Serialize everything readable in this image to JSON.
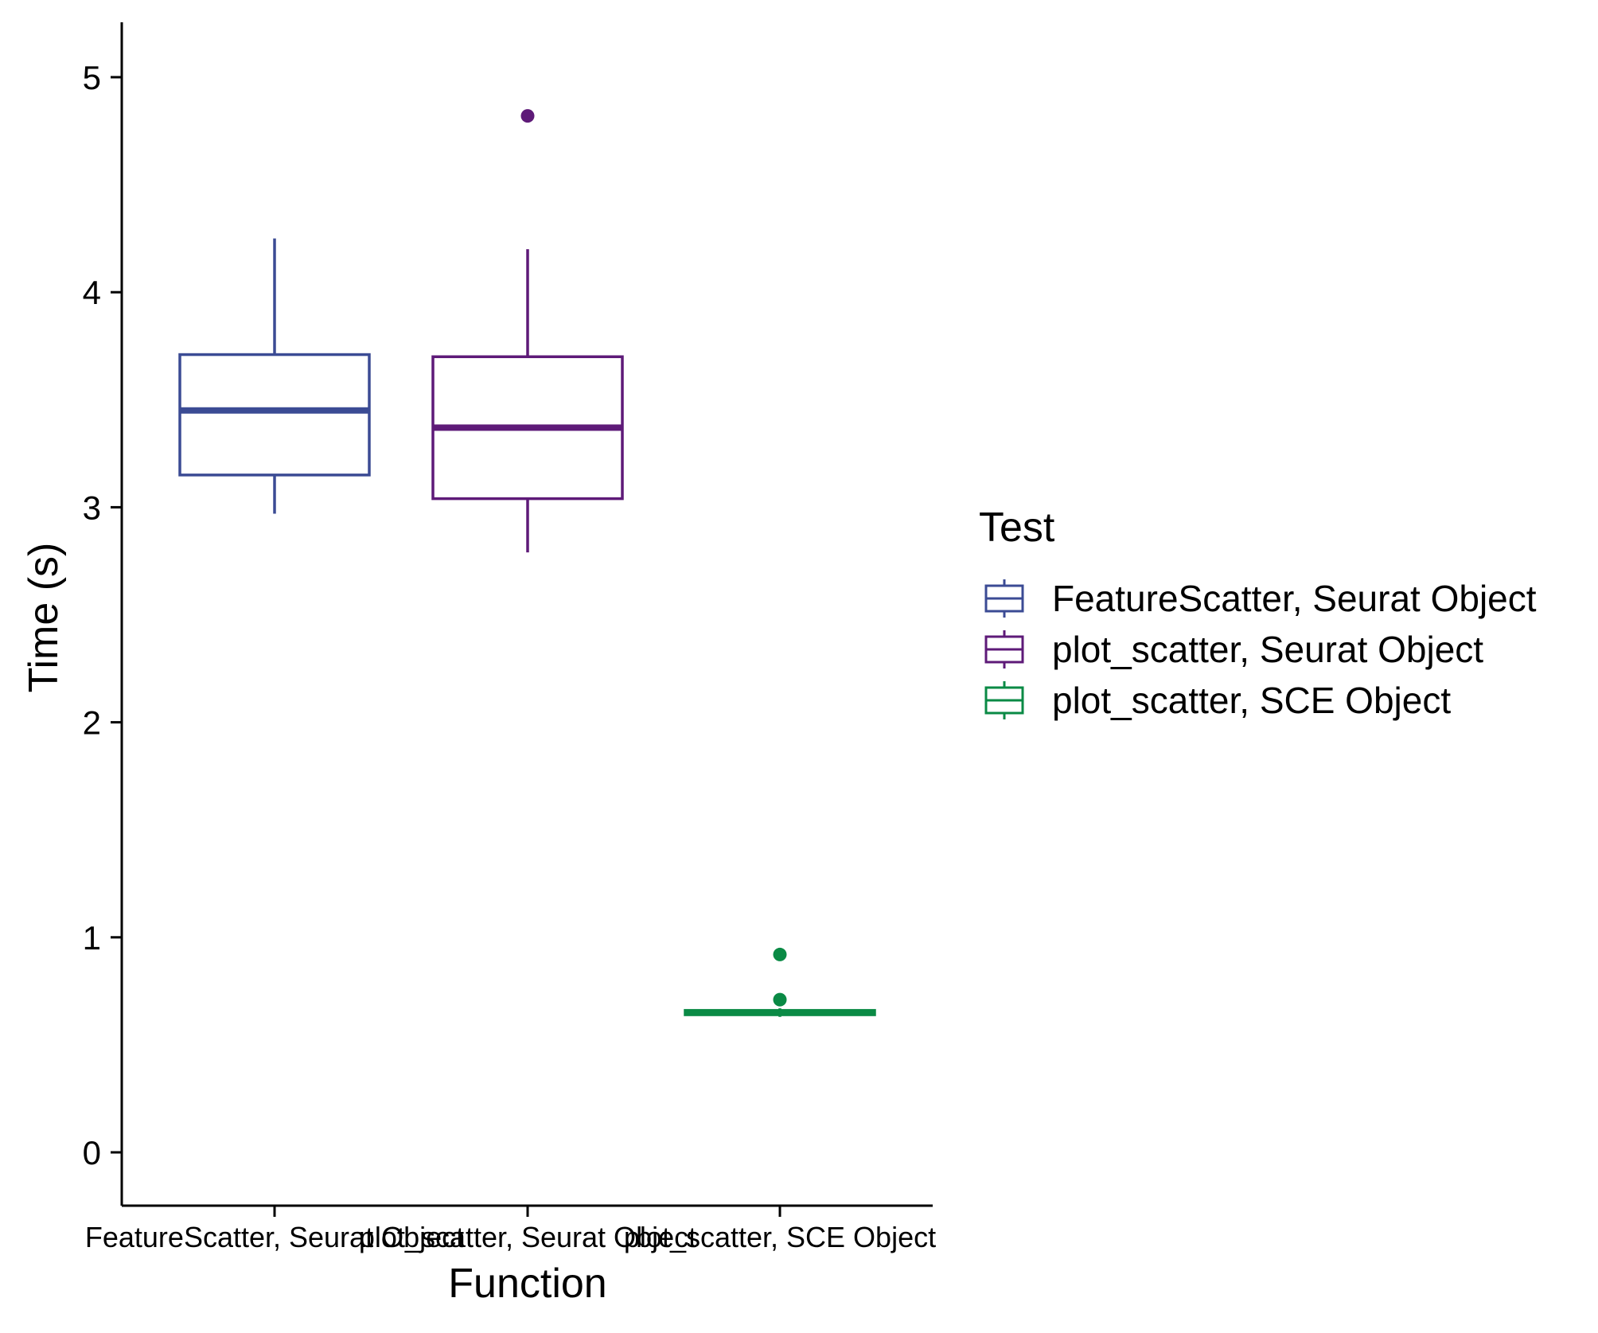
{
  "colors": {
    "FeatureScatter, Seurat Object": "#3B4B94",
    "plot_scatter, Seurat Object": "#5E1A78",
    "plot_scatter, SCE Object": "#0A8A45",
    "axis": "#000000",
    "background": "#ffffff"
  },
  "chart_data": {
    "type": "boxplot",
    "xlabel": "Function",
    "ylabel": "Time (s)",
    "ylim": [
      -0.25,
      5.25
    ],
    "yticks": [
      0,
      1,
      2,
      3,
      4,
      5
    ],
    "categories": [
      "FeatureScatter, Seurat Object",
      "plot_scatter, Seurat Object",
      "plot_scatter, SCE Object"
    ],
    "boxes": [
      {
        "category": "FeatureScatter, Seurat Object",
        "whisker_low": 2.97,
        "q1": 3.15,
        "median": 3.45,
        "q3": 3.71,
        "whisker_high": 4.25,
        "outliers": []
      },
      {
        "category": "plot_scatter, Seurat Object",
        "whisker_low": 2.79,
        "q1": 3.04,
        "median": 3.37,
        "q3": 3.7,
        "whisker_high": 4.2,
        "outliers": [
          4.82
        ]
      },
      {
        "category": "plot_scatter, SCE Object",
        "whisker_low": 0.63,
        "q1": 0.64,
        "median": 0.65,
        "q3": 0.66,
        "whisker_high": 0.67,
        "outliers": [
          0.71,
          0.92
        ]
      }
    ],
    "legend": {
      "title": "Test",
      "position": "right",
      "entries": [
        "FeatureScatter, Seurat Object",
        "plot_scatter, Seurat Object",
        "plot_scatter, SCE Object"
      ]
    },
    "grid": false
  }
}
